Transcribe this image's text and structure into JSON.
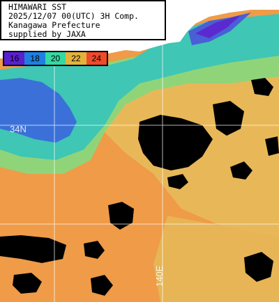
{
  "title": {
    "line1": "HIMAWARI SST",
    "line2": "2025/12/07 00(UTC) 3H Comp.",
    "line3": "Kanagawa Prefecture",
    "line4": "supplied by JAXA"
  },
  "legend": {
    "items": [
      {
        "label": "16",
        "color": "#5a1fd1"
      },
      {
        "label": "18",
        "color": "#1e7fe0"
      },
      {
        "label": "20",
        "color": "#35d8a0"
      },
      {
        "label": "22",
        "color": "#e3b23c"
      },
      {
        "label": "24",
        "color": "#ef4a2a"
      }
    ]
  },
  "grid": {
    "lat_label": "34N",
    "lon_label": "140E"
  },
  "colors": {
    "land": "#ffffff",
    "cloud": "#000000",
    "coastal_blue": "#3a6fd8",
    "teal": "#3ec8b2",
    "green": "#8fd37a",
    "yellow": "#e9c25a",
    "orange": "#f0a04a",
    "dark_orange": "#ea8a3e",
    "grid_line": "#ffffff"
  }
}
